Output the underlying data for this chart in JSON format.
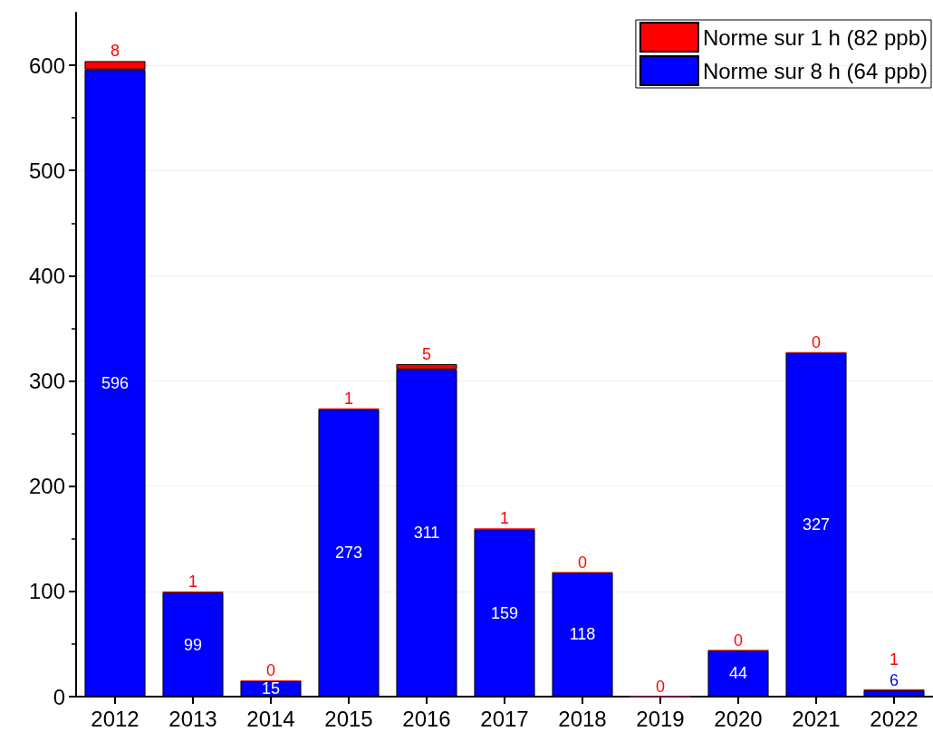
{
  "chart_data": {
    "type": "bar",
    "stacked": true,
    "categories": [
      "2012",
      "2013",
      "2014",
      "2015",
      "2016",
      "2017",
      "2018",
      "2019",
      "2020",
      "2021",
      "2022"
    ],
    "series": [
      {
        "name": "Norme sur 8 h (64 ppb)",
        "color": "#0000ff",
        "values": [
          596,
          99,
          15,
          273,
          311,
          159,
          118,
          0,
          44,
          327,
          6
        ],
        "value_labels": [
          "596",
          "99",
          "15",
          "273",
          "311",
          "159",
          "118",
          null,
          "44",
          "327",
          "6"
        ]
      },
      {
        "name": "Norme sur 1 h (82 ppb)",
        "color": "#ff0000",
        "values": [
          8,
          1,
          0,
          1,
          5,
          1,
          0,
          0,
          0,
          0,
          1
        ],
        "value_labels": [
          "8",
          "1",
          "0",
          "1",
          "5",
          "1",
          "0",
          "0",
          "0",
          "0",
          "1"
        ]
      }
    ],
    "ylim": [
      0,
      650
    ],
    "yticks": [
      0,
      100,
      200,
      300,
      400,
      500,
      600
    ],
    "grid": "y",
    "legend": "top right"
  }
}
